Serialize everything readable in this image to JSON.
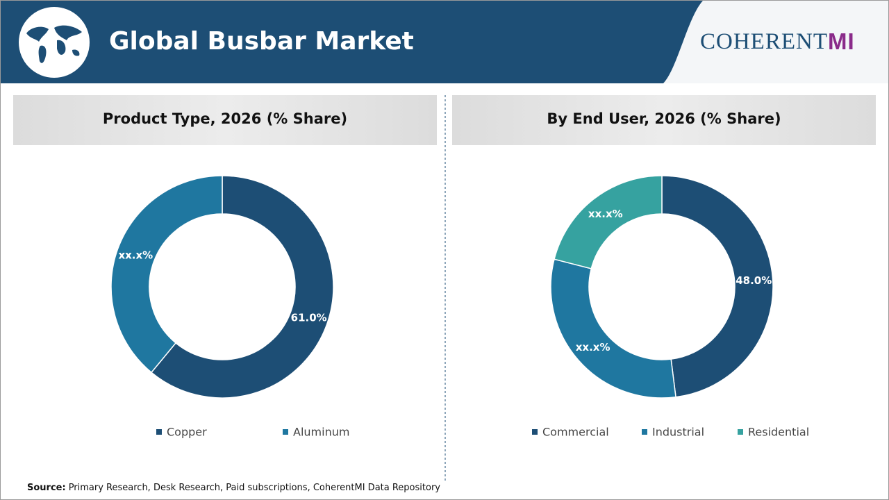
{
  "header": {
    "title": "Global Busbar Market",
    "logo": "COHERENT",
    "logo_mark": "MI"
  },
  "chart_data": [
    {
      "type": "donut",
      "title": "Product Type, 2026 (% Share)",
      "categories": [
        "Copper",
        "Aluminum"
      ],
      "values": [
        61.0,
        39
      ],
      "value_labels": [
        "61.0%",
        "xx.x%"
      ],
      "colors": [
        "#1d4e75",
        "#1f77a0"
      ]
    },
    {
      "type": "donut",
      "title": "By End User, 2026 (% Share)",
      "categories": [
        "Commercial",
        "Industrial",
        "Residential"
      ],
      "values": [
        48.0,
        31,
        21
      ],
      "value_labels": [
        "48.0%",
        "xx.x%",
        "xx.x%"
      ],
      "colors": [
        "#1d4e75",
        "#1f77a0",
        "#36a2a0"
      ]
    }
  ],
  "source": {
    "label": "Source:",
    "text": "Primary Research, Desk Research, Paid subscriptions, CoherentMI Data Repository"
  }
}
